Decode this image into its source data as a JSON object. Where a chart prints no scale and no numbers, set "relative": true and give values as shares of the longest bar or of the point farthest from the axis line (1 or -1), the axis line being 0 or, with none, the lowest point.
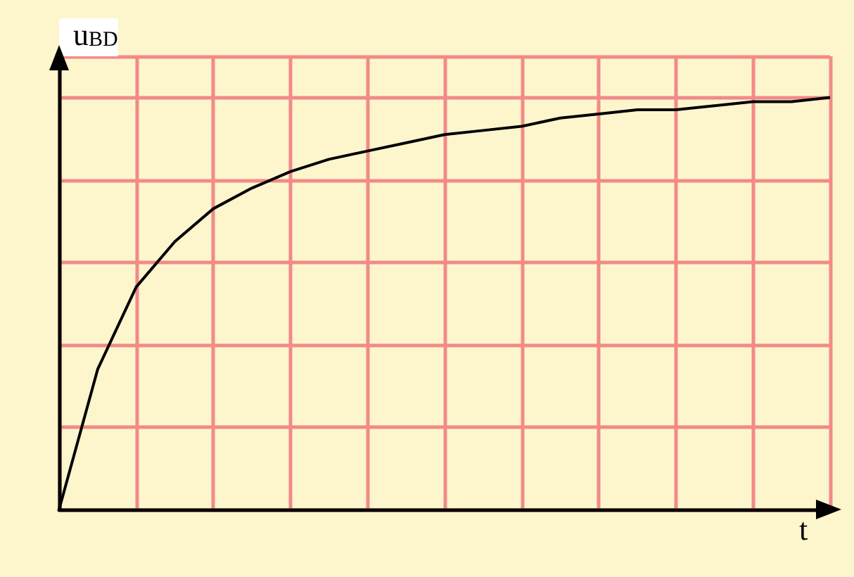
{
  "chart_data": {
    "type": "line",
    "relative": true,
    "xlabel": "t",
    "ylabel": "u$_{BD}$",
    "grid": true,
    "marker": "none",
    "line_style": "solid",
    "categories": [
      null,
      null,
      null,
      null,
      null,
      null,
      null,
      null,
      null,
      null,
      null,
      null,
      null,
      null,
      null,
      null,
      null,
      null,
      null,
      null,
      null
    ],
    "series": [
      {
        "color": "#000000",
        "values": [
          0,
          0.34,
          0.54,
          0.65,
          0.73,
          0.78,
          0.82,
          0.85,
          0.87,
          0.89,
          0.91,
          0.92,
          0.93,
          0.95,
          0.96,
          0.97,
          0.97,
          0.98,
          0.99,
          0.99,
          1
        ]
      }
    ]
  }
}
